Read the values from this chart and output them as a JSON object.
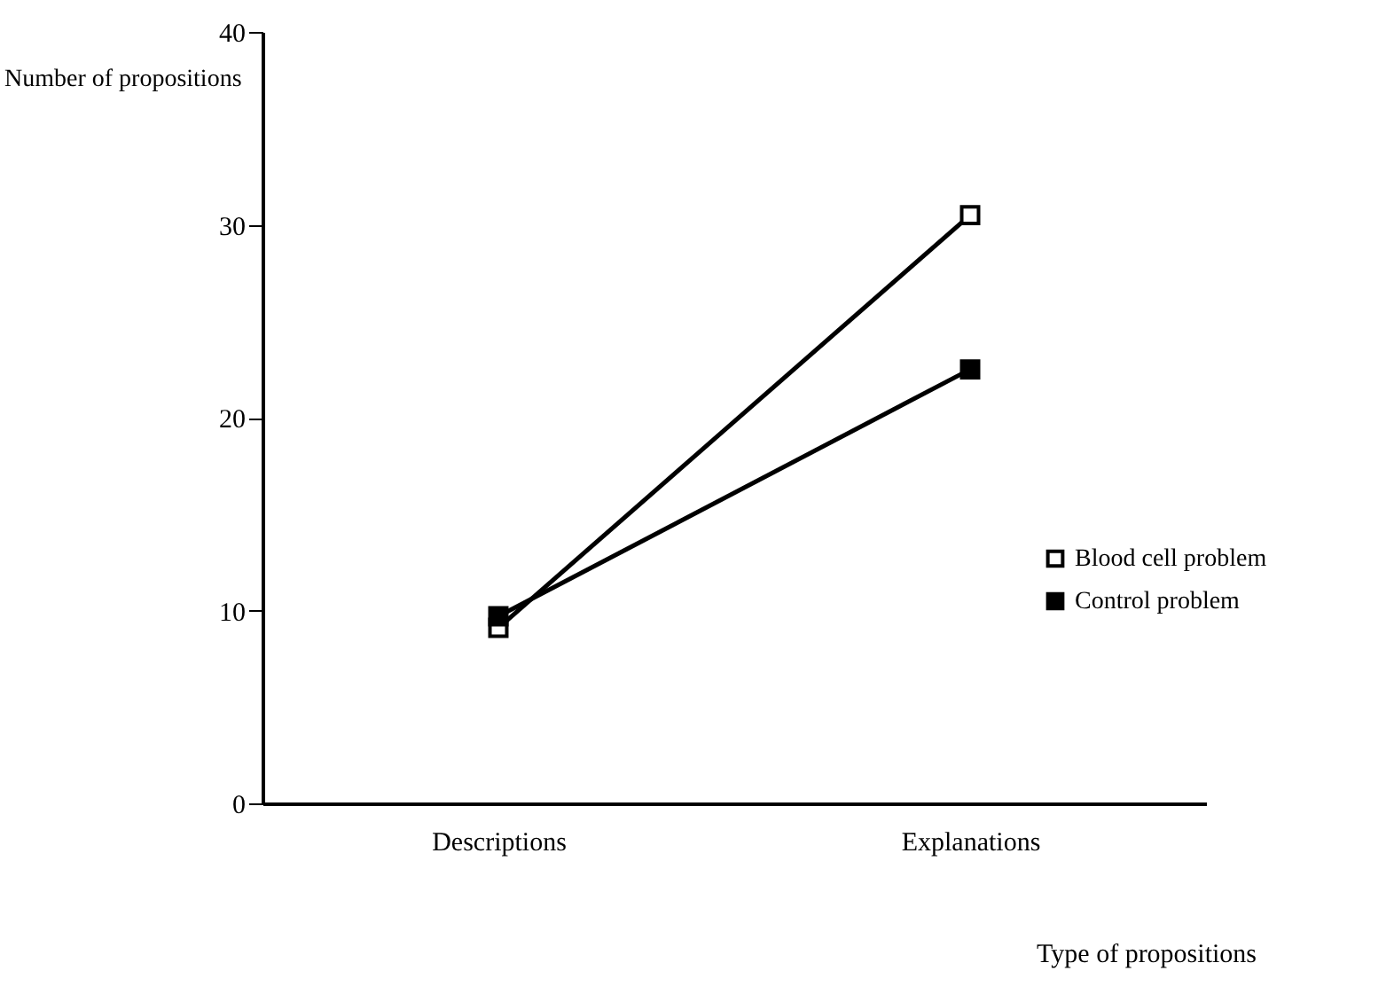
{
  "chart_data": {
    "type": "line",
    "xlabel": "Type of propositions",
    "ylabel": "Number of propositions",
    "categories": [
      "Descriptions",
      "Explanations"
    ],
    "series": [
      {
        "name": "Blood cell problem",
        "color": "#000000",
        "values": [
          9.1,
          30.5
        ]
      },
      {
        "name": "Control problem",
        "color": "#000000",
        "values": [
          9.7,
          22.5
        ]
      }
    ],
    "ylim": [
      0,
      40
    ],
    "yticks": [
      0,
      10,
      20,
      30,
      40
    ],
    "grid": false,
    "legend": "right",
    "marker": "square",
    "line_style": "solid"
  }
}
